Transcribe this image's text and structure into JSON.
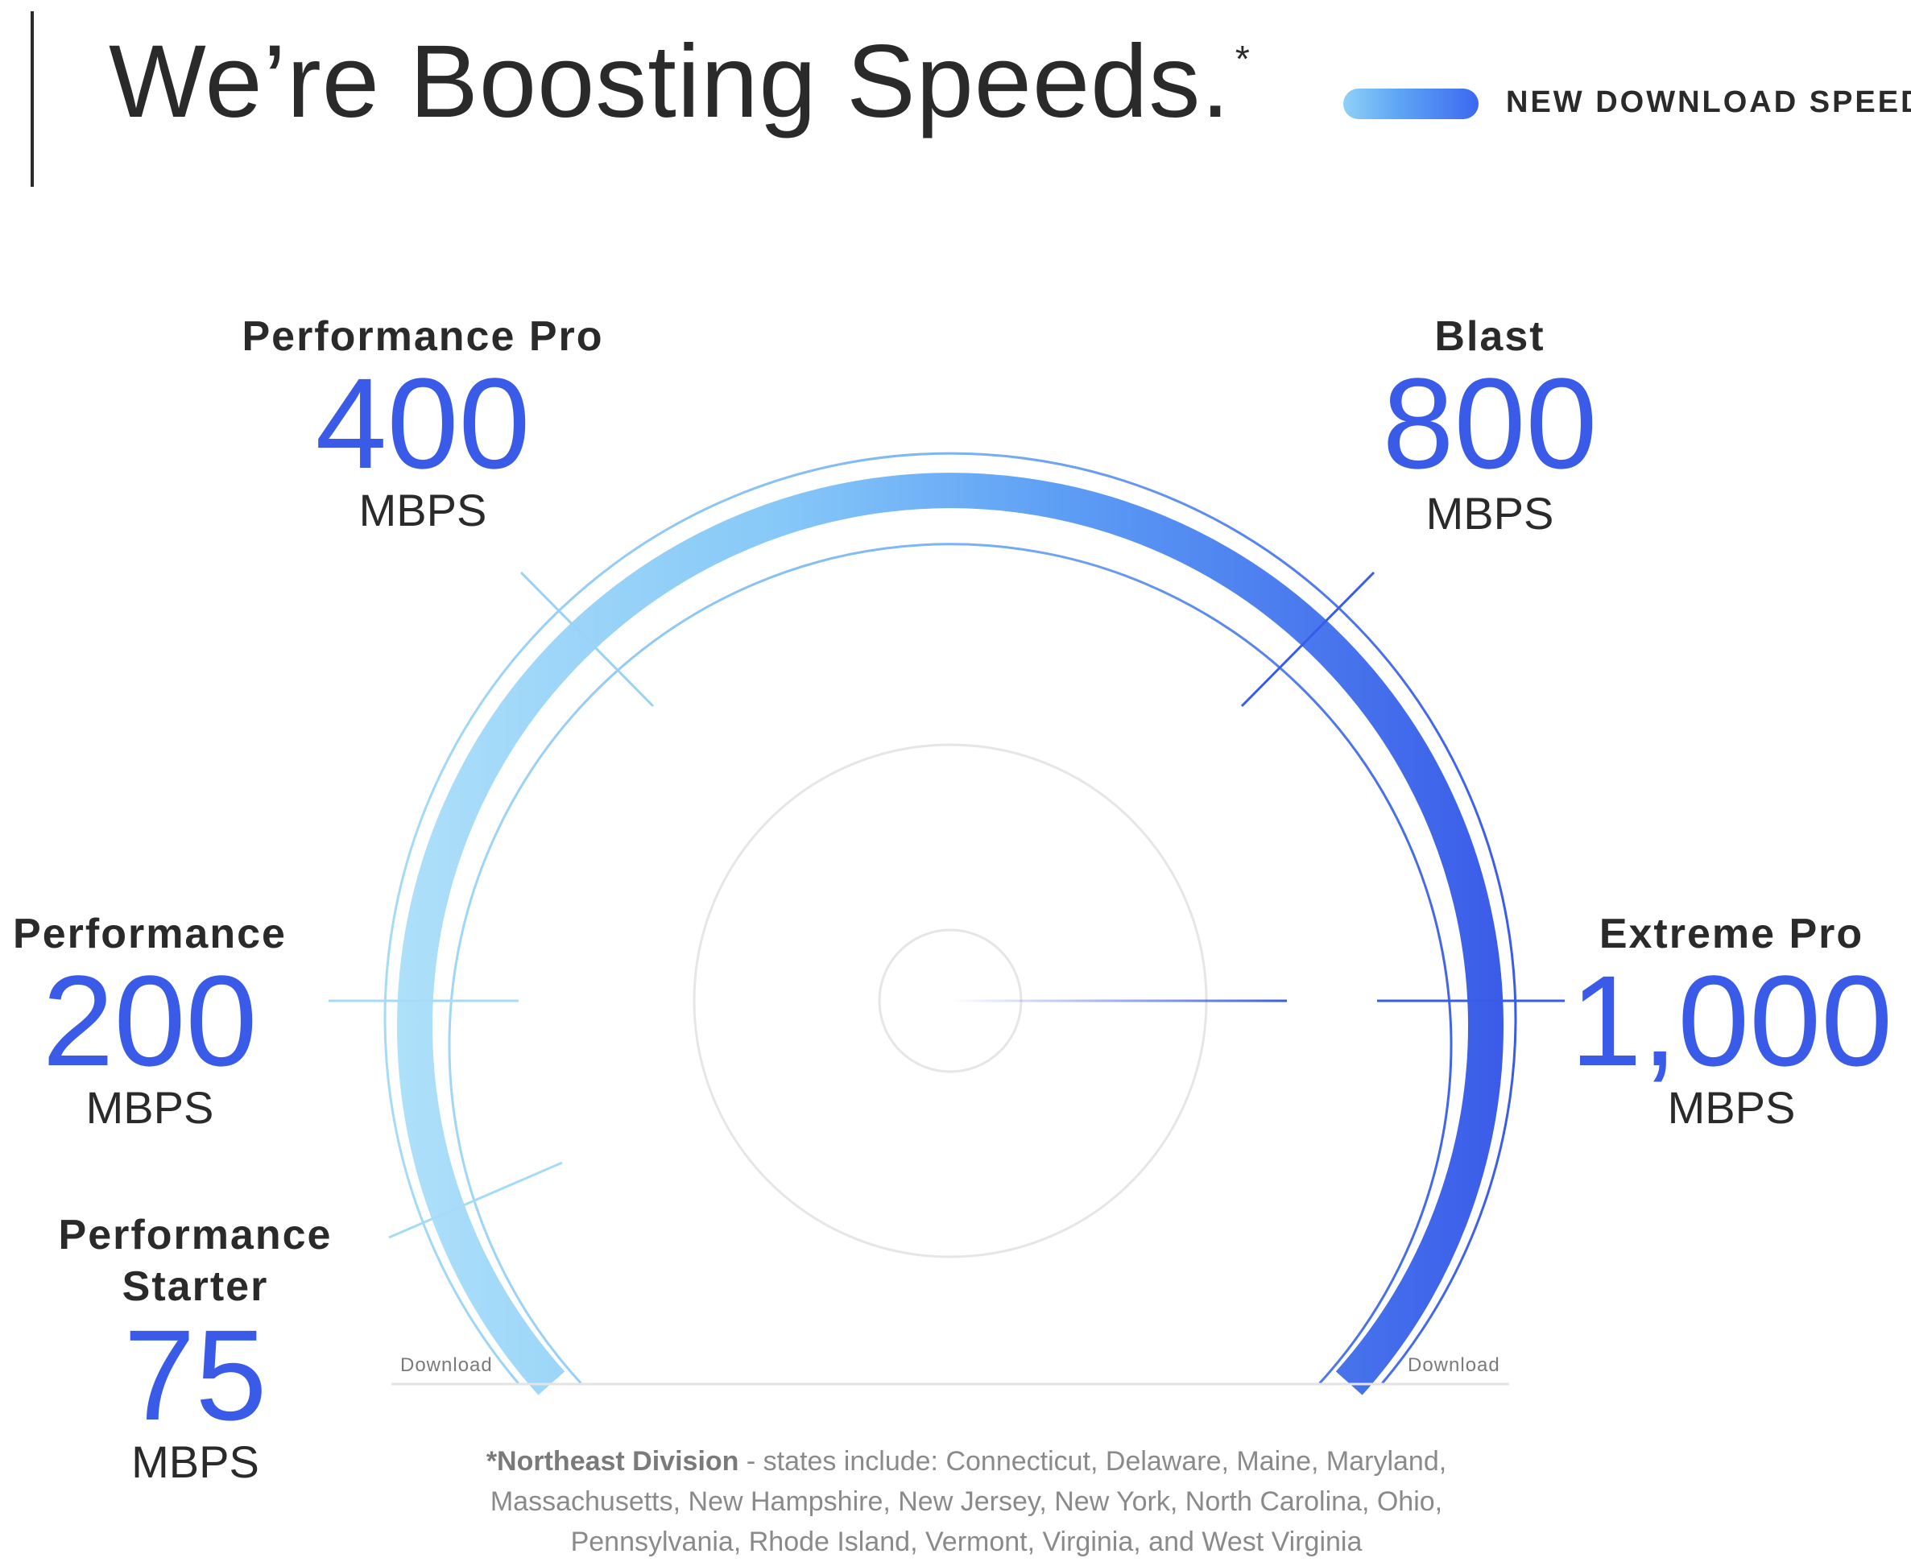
{
  "header": {
    "title": "We’re Boosting Speeds.",
    "title_marker": "*",
    "legend_label": "NEW DOWNLOAD SPEED"
  },
  "tiers": [
    {
      "name": "Performance Starter",
      "speed": "75",
      "unit": "MBPS"
    },
    {
      "name": "Performance",
      "speed": "200",
      "unit": "MBPS"
    },
    {
      "name": "Performance Pro",
      "speed": "400",
      "unit": "MBPS"
    },
    {
      "name": "Blast",
      "speed": "800",
      "unit": "MBPS"
    },
    {
      "name": "Extreme Pro",
      "speed": "1,000",
      "unit": "MBPS"
    }
  ],
  "gauge": {
    "left_label": "Download",
    "right_label": "Download"
  },
  "footnote": {
    "lead": "*Northeast Division",
    "text": " - states include: Connecticut, Delaware, Maine, Maryland, Massachusetts, New Hampshire, New Jersey, New York, North Carolina, Ohio, Pennsylvania, Rhode Island, Vermont, Virginia, and West Virginia"
  },
  "colors": {
    "accent": "#3a5be8",
    "gradient_start": "#a8dcf8",
    "gradient_end": "#3a5be8"
  }
}
